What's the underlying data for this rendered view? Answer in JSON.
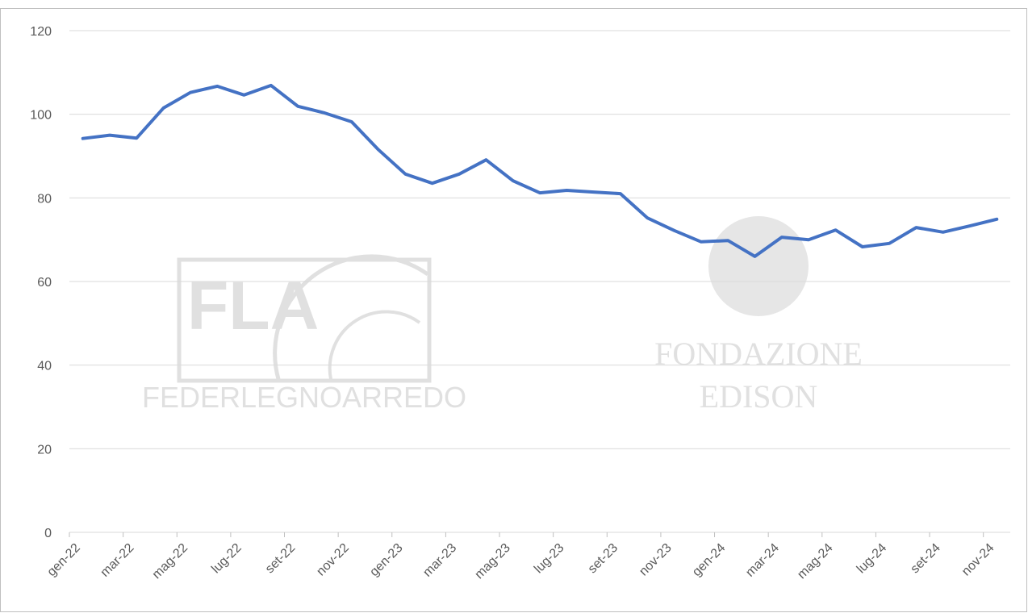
{
  "chart_data": {
    "type": "line",
    "categories": [
      "gen-22",
      null,
      "mar-22",
      null,
      "mag-22",
      null,
      "lug-22",
      null,
      "set-22",
      null,
      "nov-22",
      null,
      "gen-23",
      null,
      "mar-23",
      null,
      "mag-23",
      null,
      "lug-23",
      null,
      "set-23",
      null,
      "nov-23",
      null,
      "gen-24",
      null,
      "mar-24",
      null,
      "mag-24",
      null,
      "lug-24",
      null,
      "set-24",
      null,
      "nov-24"
    ],
    "series": [
      {
        "name": null,
        "color": "#4472c4",
        "values": [
          94.2,
          95,
          94.3,
          101.5,
          105.2,
          106.7,
          104.6,
          106.9,
          101.9,
          100.3,
          98.2,
          91.5,
          85.7,
          83.5,
          85.7,
          89.1,
          84.1,
          81.2,
          81.8,
          81.4,
          81,
          75.2,
          72.2,
          69.5,
          69.8,
          66,
          70.6,
          70,
          72.3,
          68.3,
          69.1,
          72.9,
          71.8,
          73.3,
          74.9
        ]
      }
    ],
    "ylim": [
      0,
      120
    ],
    "yticks": [
      0,
      20,
      40,
      60,
      80,
      100,
      120
    ],
    "grid": true,
    "watermarks": [
      "FLA",
      "FEDERLEGNOARREDO",
      "FONDAZIONE",
      "EDISON"
    ]
  }
}
